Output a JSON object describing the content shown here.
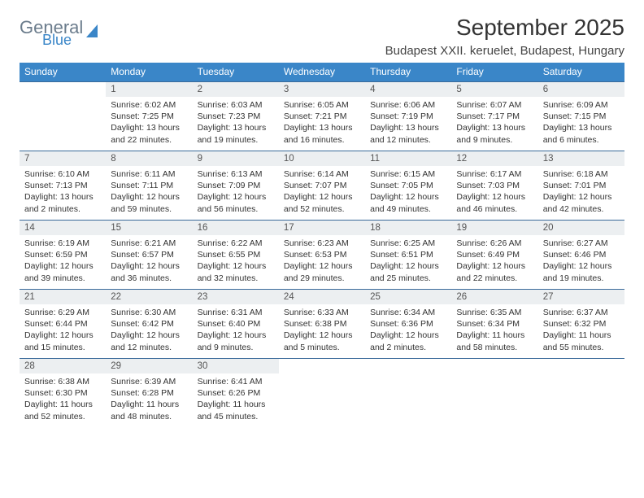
{
  "brand": {
    "word1": "General",
    "word2": "Blue"
  },
  "title": "September 2025",
  "subtitle": "Budapest XXII. keruelet, Budapest, Hungary",
  "colors": {
    "header_bg": "#3a86c8",
    "header_text": "#ffffff",
    "daynum_bg": "#eceff1",
    "row_border": "#3a6a9a",
    "logo_gray": "#6b7c8c",
    "logo_blue": "#3a86c8"
  },
  "weekdays": [
    "Sunday",
    "Monday",
    "Tuesday",
    "Wednesday",
    "Thursday",
    "Friday",
    "Saturday"
  ],
  "weeks": [
    [
      {
        "n": "",
        "sr": "",
        "ss": "",
        "dl": ""
      },
      {
        "n": "1",
        "sr": "Sunrise: 6:02 AM",
        "ss": "Sunset: 7:25 PM",
        "dl": "Daylight: 13 hours and 22 minutes."
      },
      {
        "n": "2",
        "sr": "Sunrise: 6:03 AM",
        "ss": "Sunset: 7:23 PM",
        "dl": "Daylight: 13 hours and 19 minutes."
      },
      {
        "n": "3",
        "sr": "Sunrise: 6:05 AM",
        "ss": "Sunset: 7:21 PM",
        "dl": "Daylight: 13 hours and 16 minutes."
      },
      {
        "n": "4",
        "sr": "Sunrise: 6:06 AM",
        "ss": "Sunset: 7:19 PM",
        "dl": "Daylight: 13 hours and 12 minutes."
      },
      {
        "n": "5",
        "sr": "Sunrise: 6:07 AM",
        "ss": "Sunset: 7:17 PM",
        "dl": "Daylight: 13 hours and 9 minutes."
      },
      {
        "n": "6",
        "sr": "Sunrise: 6:09 AM",
        "ss": "Sunset: 7:15 PM",
        "dl": "Daylight: 13 hours and 6 minutes."
      }
    ],
    [
      {
        "n": "7",
        "sr": "Sunrise: 6:10 AM",
        "ss": "Sunset: 7:13 PM",
        "dl": "Daylight: 13 hours and 2 minutes."
      },
      {
        "n": "8",
        "sr": "Sunrise: 6:11 AM",
        "ss": "Sunset: 7:11 PM",
        "dl": "Daylight: 12 hours and 59 minutes."
      },
      {
        "n": "9",
        "sr": "Sunrise: 6:13 AM",
        "ss": "Sunset: 7:09 PM",
        "dl": "Daylight: 12 hours and 56 minutes."
      },
      {
        "n": "10",
        "sr": "Sunrise: 6:14 AM",
        "ss": "Sunset: 7:07 PM",
        "dl": "Daylight: 12 hours and 52 minutes."
      },
      {
        "n": "11",
        "sr": "Sunrise: 6:15 AM",
        "ss": "Sunset: 7:05 PM",
        "dl": "Daylight: 12 hours and 49 minutes."
      },
      {
        "n": "12",
        "sr": "Sunrise: 6:17 AM",
        "ss": "Sunset: 7:03 PM",
        "dl": "Daylight: 12 hours and 46 minutes."
      },
      {
        "n": "13",
        "sr": "Sunrise: 6:18 AM",
        "ss": "Sunset: 7:01 PM",
        "dl": "Daylight: 12 hours and 42 minutes."
      }
    ],
    [
      {
        "n": "14",
        "sr": "Sunrise: 6:19 AM",
        "ss": "Sunset: 6:59 PM",
        "dl": "Daylight: 12 hours and 39 minutes."
      },
      {
        "n": "15",
        "sr": "Sunrise: 6:21 AM",
        "ss": "Sunset: 6:57 PM",
        "dl": "Daylight: 12 hours and 36 minutes."
      },
      {
        "n": "16",
        "sr": "Sunrise: 6:22 AM",
        "ss": "Sunset: 6:55 PM",
        "dl": "Daylight: 12 hours and 32 minutes."
      },
      {
        "n": "17",
        "sr": "Sunrise: 6:23 AM",
        "ss": "Sunset: 6:53 PM",
        "dl": "Daylight: 12 hours and 29 minutes."
      },
      {
        "n": "18",
        "sr": "Sunrise: 6:25 AM",
        "ss": "Sunset: 6:51 PM",
        "dl": "Daylight: 12 hours and 25 minutes."
      },
      {
        "n": "19",
        "sr": "Sunrise: 6:26 AM",
        "ss": "Sunset: 6:49 PM",
        "dl": "Daylight: 12 hours and 22 minutes."
      },
      {
        "n": "20",
        "sr": "Sunrise: 6:27 AM",
        "ss": "Sunset: 6:46 PM",
        "dl": "Daylight: 12 hours and 19 minutes."
      }
    ],
    [
      {
        "n": "21",
        "sr": "Sunrise: 6:29 AM",
        "ss": "Sunset: 6:44 PM",
        "dl": "Daylight: 12 hours and 15 minutes."
      },
      {
        "n": "22",
        "sr": "Sunrise: 6:30 AM",
        "ss": "Sunset: 6:42 PM",
        "dl": "Daylight: 12 hours and 12 minutes."
      },
      {
        "n": "23",
        "sr": "Sunrise: 6:31 AM",
        "ss": "Sunset: 6:40 PM",
        "dl": "Daylight: 12 hours and 9 minutes."
      },
      {
        "n": "24",
        "sr": "Sunrise: 6:33 AM",
        "ss": "Sunset: 6:38 PM",
        "dl": "Daylight: 12 hours and 5 minutes."
      },
      {
        "n": "25",
        "sr": "Sunrise: 6:34 AM",
        "ss": "Sunset: 6:36 PM",
        "dl": "Daylight: 12 hours and 2 minutes."
      },
      {
        "n": "26",
        "sr": "Sunrise: 6:35 AM",
        "ss": "Sunset: 6:34 PM",
        "dl": "Daylight: 11 hours and 58 minutes."
      },
      {
        "n": "27",
        "sr": "Sunrise: 6:37 AM",
        "ss": "Sunset: 6:32 PM",
        "dl": "Daylight: 11 hours and 55 minutes."
      }
    ],
    [
      {
        "n": "28",
        "sr": "Sunrise: 6:38 AM",
        "ss": "Sunset: 6:30 PM",
        "dl": "Daylight: 11 hours and 52 minutes."
      },
      {
        "n": "29",
        "sr": "Sunrise: 6:39 AM",
        "ss": "Sunset: 6:28 PM",
        "dl": "Daylight: 11 hours and 48 minutes."
      },
      {
        "n": "30",
        "sr": "Sunrise: 6:41 AM",
        "ss": "Sunset: 6:26 PM",
        "dl": "Daylight: 11 hours and 45 minutes."
      },
      {
        "n": "",
        "sr": "",
        "ss": "",
        "dl": ""
      },
      {
        "n": "",
        "sr": "",
        "ss": "",
        "dl": ""
      },
      {
        "n": "",
        "sr": "",
        "ss": "",
        "dl": ""
      },
      {
        "n": "",
        "sr": "",
        "ss": "",
        "dl": ""
      }
    ]
  ]
}
